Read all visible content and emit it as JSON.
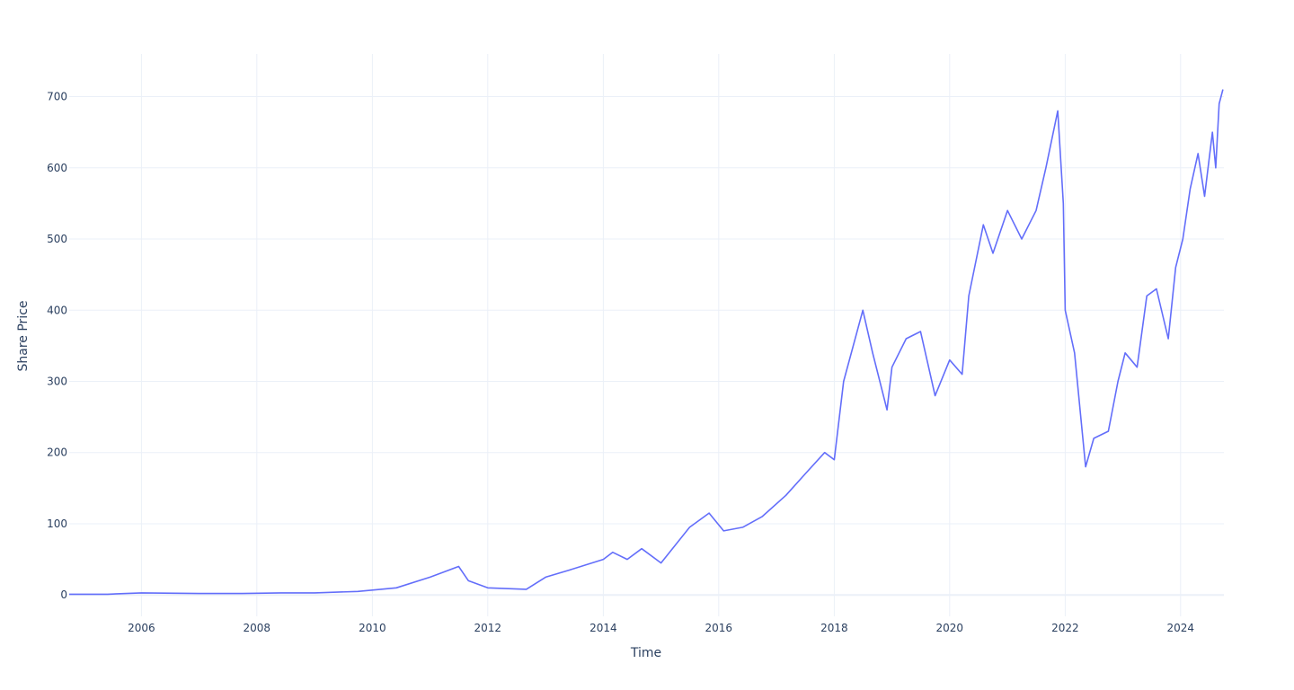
{
  "chart_data": {
    "type": "line",
    "title": "",
    "xlabel": "Time",
    "ylabel": "Share Price",
    "xlim": [
      "2004-10-01",
      "2024-10-01"
    ],
    "ylim": [
      -30,
      760
    ],
    "grid": true,
    "legend": "none",
    "colors": {
      "line": "#636efa",
      "grid": "#ebf0f8",
      "zeroline": "#ebf0f8",
      "text": "#2a3f5f"
    },
    "x_ticks": [
      "2006",
      "2008",
      "2010",
      "2012",
      "2014",
      "2016",
      "2018",
      "2020",
      "2022",
      "2024"
    ],
    "y_ticks": [
      0,
      100,
      200,
      300,
      400,
      500,
      600,
      700
    ],
    "series": [
      {
        "x": [
          "2004-10-01",
          "2005-06-01",
          "2006-01-01",
          "2007-01-01",
          "2007-10-01",
          "2008-06-01",
          "2009-01-01",
          "2009-10-01",
          "2010-06-01",
          "2011-01-01",
          "2011-07-01",
          "2011-09-01",
          "2012-01-01",
          "2012-09-01",
          "2013-01-01",
          "2013-06-01",
          "2014-01-01",
          "2014-03-01",
          "2014-06-01",
          "2014-09-01",
          "2015-01-01",
          "2015-07-01",
          "2015-11-01",
          "2016-02-01",
          "2016-06-01",
          "2016-10-01",
          "2017-03-01",
          "2017-07-01",
          "2017-11-01",
          "2018-01-01",
          "2018-03-01",
          "2018-07-01",
          "2018-09-01",
          "2018-12-01",
          "2019-01-01",
          "2019-04-01",
          "2019-07-01",
          "2019-10-01",
          "2020-01-01",
          "2020-03-20",
          "2020-05-01",
          "2020-08-01",
          "2020-10-01",
          "2021-01-01",
          "2021-04-01",
          "2021-07-01",
          "2021-09-01",
          "2021-11-15",
          "2021-12-20",
          "2022-01-01",
          "2022-03-01",
          "2022-05-10",
          "2022-07-01",
          "2022-10-01",
          "2022-12-01",
          "2023-01-15",
          "2023-04-01",
          "2023-06-01",
          "2023-08-01",
          "2023-10-15",
          "2023-12-01",
          "2024-01-15",
          "2024-03-01",
          "2024-04-20",
          "2024-06-01",
          "2024-07-20",
          "2024-08-10",
          "2024-09-01",
          "2024-09-25"
        ],
        "y": [
          1,
          1,
          3,
          2,
          2,
          3,
          3,
          5,
          10,
          25,
          40,
          20,
          10,
          8,
          25,
          35,
          50,
          60,
          50,
          65,
          45,
          95,
          115,
          90,
          95,
          110,
          140,
          170,
          200,
          190,
          300,
          400,
          340,
          260,
          320,
          360,
          370,
          280,
          330,
          310,
          420,
          520,
          480,
          540,
          500,
          540,
          600,
          680,
          550,
          400,
          340,
          180,
          220,
          230,
          300,
          340,
          320,
          420,
          430,
          360,
          460,
          500,
          570,
          620,
          560,
          650,
          600,
          690,
          710
        ]
      }
    ]
  }
}
